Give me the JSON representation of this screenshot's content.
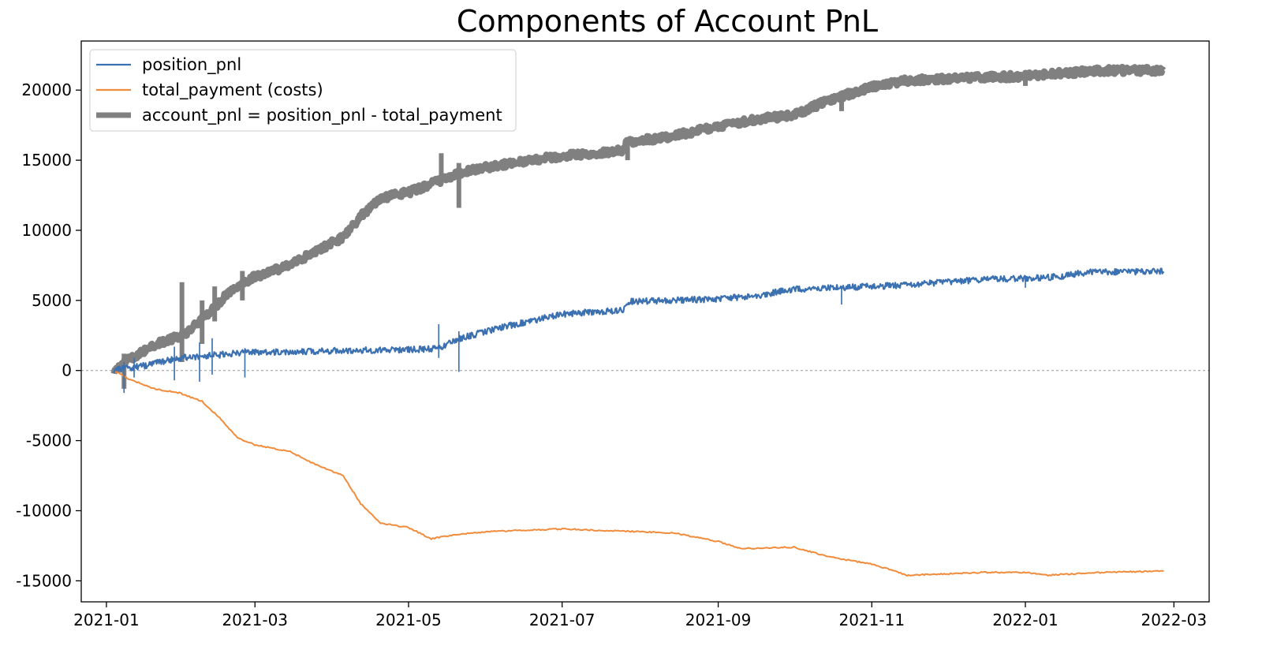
{
  "chart_data": {
    "type": "line",
    "title": "Components of Account PnL",
    "xlabel": "",
    "ylabel": "",
    "x_axis_type": "date",
    "xlim": [
      "2020-12-22",
      "2022-03-15"
    ],
    "ylim": [
      -16500,
      23500
    ],
    "x_ticks": [
      "2021-01",
      "2021-03",
      "2021-05",
      "2021-07",
      "2021-09",
      "2021-11",
      "2022-01",
      "2022-03"
    ],
    "y_ticks": [
      -15000,
      -10000,
      -5000,
      0,
      5000,
      10000,
      15000,
      20000
    ],
    "grid": false,
    "zero_line": true,
    "legend_position": "top-left",
    "series": [
      {
        "name": "position_pnl",
        "color": "#3b70b1",
        "style": "thin-noisy",
        "points": [
          [
            "2021-01-04",
            0
          ],
          [
            "2021-01-08",
            150
          ],
          [
            "2021-01-15",
            300
          ],
          [
            "2021-01-25",
            700
          ],
          [
            "2021-02-01",
            950
          ],
          [
            "2021-02-10",
            1050
          ],
          [
            "2021-02-20",
            1200
          ],
          [
            "2021-03-01",
            1300
          ],
          [
            "2021-03-15",
            1350
          ],
          [
            "2021-04-01",
            1400
          ],
          [
            "2021-04-15",
            1450
          ],
          [
            "2021-05-01",
            1500
          ],
          [
            "2021-05-13",
            1550
          ],
          [
            "2021-05-20",
            2200
          ],
          [
            "2021-06-01",
            2800
          ],
          [
            "2021-06-15",
            3400
          ],
          [
            "2021-07-01",
            4000
          ],
          [
            "2021-07-15",
            4200
          ],
          [
            "2021-07-25",
            4300
          ],
          [
            "2021-07-27",
            4900
          ],
          [
            "2021-08-10",
            5000
          ],
          [
            "2021-09-01",
            5100
          ],
          [
            "2021-09-15",
            5300
          ],
          [
            "2021-10-01",
            5800
          ],
          [
            "2021-10-15",
            5900
          ],
          [
            "2021-11-01",
            6000
          ],
          [
            "2021-11-15",
            6100
          ],
          [
            "2021-12-01",
            6300
          ],
          [
            "2021-12-15",
            6500
          ],
          [
            "2022-01-01",
            6550
          ],
          [
            "2022-01-15",
            6700
          ],
          [
            "2022-01-25",
            7000
          ],
          [
            "2022-02-10",
            7050
          ],
          [
            "2022-02-25",
            7050
          ]
        ],
        "spikes": [
          [
            "2021-01-08",
            -1600,
            600
          ],
          [
            "2021-01-12",
            -500,
            900
          ],
          [
            "2021-01-28",
            -700,
            1700
          ],
          [
            "2021-02-07",
            -800,
            2000
          ],
          [
            "2021-02-12",
            -300,
            2300
          ],
          [
            "2021-02-25",
            -500,
            1600
          ],
          [
            "2021-05-13",
            900,
            3300
          ],
          [
            "2021-05-21",
            -100,
            2800
          ],
          [
            "2021-10-20",
            4700,
            5900
          ],
          [
            "2022-01-01",
            5900,
            6600
          ]
        ]
      },
      {
        "name": "total_payment (costs)",
        "color": "#f08c3c",
        "style": "thin",
        "points": [
          [
            "2021-01-04",
            0
          ],
          [
            "2021-01-10",
            -600
          ],
          [
            "2021-01-20",
            -1300
          ],
          [
            "2021-01-30",
            -1600
          ],
          [
            "2021-02-08",
            -2200
          ],
          [
            "2021-02-15",
            -3400
          ],
          [
            "2021-02-22",
            -4800
          ],
          [
            "2021-03-01",
            -5300
          ],
          [
            "2021-03-15",
            -5800
          ],
          [
            "2021-03-25",
            -6700
          ],
          [
            "2021-04-05",
            -7500
          ],
          [
            "2021-04-12",
            -9500
          ],
          [
            "2021-04-20",
            -10900
          ],
          [
            "2021-05-01",
            -11200
          ],
          [
            "2021-05-10",
            -12000
          ],
          [
            "2021-05-20",
            -11700
          ],
          [
            "2021-06-01",
            -11500
          ],
          [
            "2021-06-15",
            -11400
          ],
          [
            "2021-07-01",
            -11300
          ],
          [
            "2021-07-15",
            -11400
          ],
          [
            "2021-08-01",
            -11500
          ],
          [
            "2021-08-15",
            -11600
          ],
          [
            "2021-09-01",
            -12200
          ],
          [
            "2021-09-10",
            -12700
          ],
          [
            "2021-10-01",
            -12600
          ],
          [
            "2021-10-15",
            -13300
          ],
          [
            "2021-11-01",
            -13800
          ],
          [
            "2021-11-15",
            -14600
          ],
          [
            "2021-12-01",
            -14500
          ],
          [
            "2021-12-15",
            -14400
          ],
          [
            "2022-01-01",
            -14400
          ],
          [
            "2022-01-10",
            -14600
          ],
          [
            "2022-01-20",
            -14500
          ],
          [
            "2022-02-01",
            -14400
          ],
          [
            "2022-02-25",
            -14300
          ]
        ],
        "spikes": []
      },
      {
        "name": "account_pnl = position_pnl - total_payment",
        "color": "#808080",
        "style": "thick-noisy",
        "points": [
          [
            "2021-01-04",
            0
          ],
          [
            "2021-01-10",
            800
          ],
          [
            "2021-01-20",
            1800
          ],
          [
            "2021-02-01",
            2600
          ],
          [
            "2021-02-10",
            4000
          ],
          [
            "2021-02-20",
            5800
          ],
          [
            "2021-03-01",
            6700
          ],
          [
            "2021-03-15",
            7500
          ],
          [
            "2021-03-25",
            8500
          ],
          [
            "2021-04-05",
            9500
          ],
          [
            "2021-04-12",
            11000
          ],
          [
            "2021-04-20",
            12300
          ],
          [
            "2021-05-01",
            12700
          ],
          [
            "2021-05-13",
            13500
          ],
          [
            "2021-05-20",
            14000
          ],
          [
            "2021-06-01",
            14500
          ],
          [
            "2021-06-15",
            14900
          ],
          [
            "2021-07-01",
            15300
          ],
          [
            "2021-07-25",
            15700
          ],
          [
            "2021-07-27",
            16300
          ],
          [
            "2021-08-10",
            16600
          ],
          [
            "2021-09-01",
            17400
          ],
          [
            "2021-09-15",
            17900
          ],
          [
            "2021-10-01",
            18200
          ],
          [
            "2021-10-15",
            19300
          ],
          [
            "2021-11-01",
            20200
          ],
          [
            "2021-11-15",
            20700
          ],
          [
            "2021-12-01",
            20800
          ],
          [
            "2021-12-15",
            20900
          ],
          [
            "2022-01-01",
            21000
          ],
          [
            "2022-01-15",
            21200
          ],
          [
            "2022-02-01",
            21400
          ],
          [
            "2022-02-25",
            21400
          ]
        ],
        "spikes": [
          [
            "2021-01-08",
            -1300,
            1200
          ],
          [
            "2021-01-31",
            600,
            6300
          ],
          [
            "2021-02-08",
            1900,
            5000
          ],
          [
            "2021-02-13",
            3500,
            6000
          ],
          [
            "2021-02-24",
            5000,
            7100
          ],
          [
            "2021-05-14",
            13300,
            15500
          ],
          [
            "2021-05-21",
            11600,
            14800
          ],
          [
            "2021-07-27",
            15000,
            16600
          ],
          [
            "2021-10-20",
            18500,
            19500
          ],
          [
            "2022-01-01",
            20300,
            21300
          ]
        ]
      }
    ]
  }
}
